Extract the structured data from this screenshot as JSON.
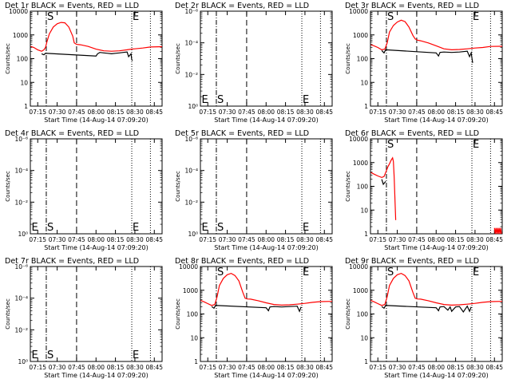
{
  "layout_hint": "3x3 grid of detector count-rate panels",
  "common": {
    "x_tick_labels": [
      "07:15",
      "07:30",
      "07:45",
      "08:00",
      "08:15",
      "08:30",
      "08:45"
    ],
    "xlabel": "Start Time (14-Aug-14 07:09:20)",
    "ylabel": "Counts/sec",
    "colors": {
      "events": "#000000",
      "lld": "#ff0000",
      "axes": "#000000"
    }
  },
  "chart_data": [
    {
      "id": "det1",
      "type": "line",
      "title": "Det 1r BLACK = Events, RED = LLD",
      "xlabel": "Start Time (14-Aug-14 07:09:20)",
      "ylabel": "Counts/sec",
      "y_scale": "log",
      "y_range": [
        1,
        15000
      ],
      "x_range": [
        7.155,
        8.85
      ],
      "y_tick_labels": [
        "1",
        "10",
        "100",
        "1000",
        "10000"
      ],
      "markers": {
        "S": 7.36,
        "E": 8.46
      },
      "vlines": {
        "dashdot": [
          7.36
        ],
        "dashed": [
          7.75
        ],
        "dotted": [
          8.46,
          8.7
        ]
      },
      "series": [
        {
          "name": "LLD",
          "color": "#ff0000",
          "x": [
            7.16,
            7.2,
            7.25,
            7.3,
            7.33,
            7.35,
            7.37,
            7.4,
            7.45,
            7.5,
            7.55,
            7.6,
            7.65,
            7.7,
            7.72,
            7.75,
            7.8,
            7.9,
            8.0,
            8.1,
            8.2,
            8.3,
            8.4,
            8.45,
            8.5,
            8.6,
            8.7,
            8.85
          ],
          "y": [
            420,
            380,
            300,
            260,
            300,
            380,
            700,
            1500,
            3000,
            4200,
            4800,
            4600,
            3000,
            1200,
            600,
            520,
            500,
            420,
            320,
            270,
            260,
            270,
            300,
            320,
            330,
            360,
            400,
            410
          ]
        },
        {
          "name": "Events",
          "color": "#000000",
          "x": [
            7.3,
            7.33,
            7.35,
            8.0,
            8.02,
            8.05,
            8.1,
            8.15,
            8.2,
            8.25,
            8.3,
            8.35,
            8.4,
            8.42,
            8.45,
            8.46,
            8.47
          ],
          "y": [
            200,
            180,
            210,
            160,
            200,
            230,
            220,
            210,
            200,
            210,
            220,
            230,
            240,
            150,
            200,
            110,
            100
          ]
        }
      ]
    },
    {
      "id": "det2",
      "type": "line",
      "title": "Det 2r BLACK = Events, RED = LLD",
      "xlabel": "Start Time (14-Aug-14 07:09:20)",
      "ylabel": "Counts/sec",
      "y_scale": "log",
      "y_range": [
        0.6,
        1.6e-06
      ],
      "x_range": [
        7.155,
        8.85
      ],
      "y_tick_labels": [
        "10⁰",
        "10⁻²",
        "10⁻⁴",
        "10⁻⁶"
      ],
      "markers": {
        "E": 7.16,
        "S": 7.36,
        "E2": 8.46
      },
      "vlines": {
        "dashdot": [
          7.36
        ],
        "dashed": [
          7.75
        ],
        "dotted": [
          8.46,
          8.7
        ]
      },
      "series": []
    },
    {
      "id": "det3",
      "type": "line",
      "title": "Det 3r BLACK = Events, RED = LLD",
      "xlabel": "Start Time (14-Aug-14 07:09:20)",
      "ylabel": "Counts/sec",
      "y_scale": "log",
      "y_range": [
        1,
        15000
      ],
      "x_range": [
        7.155,
        8.85
      ],
      "y_tick_labels": [
        "1",
        "10",
        "100",
        "1000",
        "10000"
      ],
      "markers": {
        "S": 7.36,
        "E": 8.46
      },
      "vlines": {
        "dashdot": [
          7.36
        ],
        "dashed": [
          7.75
        ],
        "dotted": [
          8.46,
          8.7
        ]
      },
      "series": [
        {
          "name": "LLD",
          "color": "#ff0000",
          "x": [
            7.16,
            7.2,
            7.25,
            7.3,
            7.34,
            7.37,
            7.4,
            7.45,
            7.5,
            7.55,
            7.6,
            7.65,
            7.7,
            7.73,
            7.76,
            7.8,
            7.9,
            8.0,
            8.1,
            8.2,
            8.3,
            8.4,
            8.5,
            8.6,
            8.7,
            8.85
          ],
          "y": [
            500,
            450,
            380,
            300,
            320,
            600,
            1800,
            3500,
            5000,
            6000,
            5200,
            3000,
            1300,
            900,
            800,
            750,
            600,
            450,
            330,
            300,
            310,
            330,
            360,
            380,
            420,
            430
          ]
        },
        {
          "name": "Events",
          "color": "#000000",
          "x": [
            7.3,
            7.33,
            7.35,
            8.0,
            8.03,
            8.05,
            8.1,
            8.2,
            8.3,
            8.4,
            8.43,
            8.45,
            8.47
          ],
          "y": [
            280,
            220,
            300,
            220,
            160,
            230,
            240,
            230,
            240,
            260,
            150,
            220,
            80
          ]
        }
      ]
    },
    {
      "id": "det4",
      "type": "line",
      "title": "Det 4r BLACK = Events, RED = LLD",
      "xlabel": "Start Time (14-Aug-14 07:09:20)",
      "ylabel": "Counts/sec",
      "y_scale": "log",
      "y_range": [
        0.6,
        1.6e-06
      ],
      "x_range": [
        7.155,
        8.85
      ],
      "y_tick_labels": [
        "10⁰",
        "10⁻²",
        "10⁻⁴",
        "10⁻⁶"
      ],
      "markers": {
        "E": 7.16,
        "S": 7.36,
        "E2": 8.46
      },
      "vlines": {
        "dashdot": [
          7.36
        ],
        "dashed": [
          7.75
        ],
        "dotted": [
          8.46,
          8.7
        ]
      },
      "series": []
    },
    {
      "id": "det5",
      "type": "line",
      "title": "Det 5r BLACK = Events, RED = LLD",
      "xlabel": "Start Time (14-Aug-14 07:09:20)",
      "ylabel": "Counts/sec",
      "y_scale": "log",
      "y_range": [
        0.6,
        1.6e-06
      ],
      "x_range": [
        7.155,
        8.85
      ],
      "y_tick_labels": [
        "10⁰",
        "10⁻²",
        "10⁻⁴",
        "10⁻⁶"
      ],
      "markers": {
        "E": 7.16,
        "S": 7.36,
        "E2": 8.46
      },
      "vlines": {
        "dashdot": [
          7.36
        ],
        "dashed": [
          7.75
        ],
        "dotted": [
          8.46,
          8.7
        ]
      },
      "series": []
    },
    {
      "id": "det6",
      "type": "line",
      "title": "Det 6r BLACK = Events, RED = LLD",
      "xlabel": "Start Time (14-Aug-14 07:09:20)",
      "ylabel": "Counts/sec",
      "y_scale": "log",
      "y_range": [
        1,
        15000
      ],
      "x_range": [
        7.155,
        8.85
      ],
      "y_tick_labels": [
        "1",
        "10",
        "100",
        "1000",
        "10000"
      ],
      "markers": {
        "S": 7.36,
        "E": 8.46
      },
      "vlines": {
        "dashdot": [
          7.36
        ],
        "dashed": [
          7.75
        ],
        "dotted": [
          8.46,
          8.7
        ]
      },
      "series": [
        {
          "name": "LLD",
          "color": "#ff0000",
          "x": [
            7.16,
            7.2,
            7.25,
            7.3,
            7.33,
            7.36,
            7.38,
            7.4,
            7.42,
            7.44,
            7.45,
            7.46,
            7.47,
            7.48
          ],
          "y": [
            500,
            420,
            350,
            300,
            330,
            600,
            900,
            1200,
            1700,
            2200,
            1500,
            300,
            30,
            4
          ]
        },
        {
          "name": "Events",
          "color": "#000000",
          "x": [
            7.3,
            7.32,
            7.35
          ],
          "y": [
            250,
            150,
            200
          ]
        },
        {
          "name": "LLD-tail",
          "color": "#ff0000",
          "x": [
            8.75,
            8.76,
            8.77,
            8.78,
            8.79,
            8.8,
            8.81,
            8.82,
            8.83,
            8.84
          ],
          "y": [
            1.8,
            1,
            1.8,
            1,
            1.8,
            1,
            1.8,
            1,
            1.8,
            1
          ]
        }
      ]
    },
    {
      "id": "det7",
      "type": "line",
      "title": "Det 7r BLACK = Events, RED = LLD",
      "xlabel": "Start Time (14-Aug-14 07:09:20)",
      "ylabel": "Counts/sec",
      "y_scale": "log",
      "y_range": [
        0.6,
        1.6e-06
      ],
      "x_range": [
        7.155,
        8.85
      ],
      "y_tick_labels": [
        "10⁰",
        "10⁻²",
        "10⁻⁴",
        "10⁻⁶"
      ],
      "markers": {
        "E": 7.16,
        "S": 7.36,
        "E2": 8.46
      },
      "vlines": {
        "dashdot": [
          7.36
        ],
        "dashed": [
          7.75
        ],
        "dotted": [
          8.46,
          8.7
        ]
      },
      "series": []
    },
    {
      "id": "det8",
      "type": "line",
      "title": "Det 8r BLACK = Events, RED = LLD",
      "xlabel": "Start Time (14-Aug-14 07:09:20)",
      "ylabel": "Counts/sec",
      "y_scale": "log",
      "y_range": [
        1,
        15000
      ],
      "x_range": [
        7.155,
        8.85
      ],
      "y_tick_labels": [
        "1",
        "10",
        "100",
        "1000",
        "10000"
      ],
      "markers": {
        "S": 7.36,
        "E": 8.46
      },
      "vlines": {
        "dashdot": [
          7.36
        ],
        "dashed": [
          7.75
        ],
        "dotted": [
          8.46,
          8.7
        ]
      },
      "series": [
        {
          "name": "LLD",
          "color": "#ff0000",
          "x": [
            7.16,
            7.2,
            7.25,
            7.3,
            7.34,
            7.37,
            7.4,
            7.45,
            7.5,
            7.55,
            7.6,
            7.65,
            7.7,
            7.73,
            7.76,
            7.8,
            7.9,
            8.0,
            8.1,
            8.2,
            8.3,
            8.4,
            8.5,
            8.6,
            8.7,
            8.85
          ],
          "y": [
            480,
            420,
            350,
            290,
            320,
            700,
            2200,
            4500,
            6500,
            7500,
            6000,
            3500,
            1100,
            600,
            560,
            550,
            470,
            380,
            320,
            300,
            310,
            330,
            360,
            400,
            430,
            440
          ]
        },
        {
          "name": "Events",
          "color": "#000000",
          "x": [
            7.3,
            7.33,
            7.35,
            8.0,
            8.03,
            8.05,
            8.1,
            8.2,
            8.3,
            8.4,
            8.43,
            8.45
          ],
          "y": [
            260,
            220,
            290,
            230,
            170,
            250,
            260,
            250,
            260,
            270,
            160,
            250
          ]
        }
      ]
    },
    {
      "id": "det9",
      "type": "line",
      "title": "Det 9r BLACK = Events, RED = LLD",
      "xlabel": "Start Time (14-Aug-14 07:09:20)",
      "ylabel": "Counts/sec",
      "y_scale": "log",
      "y_range": [
        1,
        15000
      ],
      "x_range": [
        7.155,
        8.85
      ],
      "y_tick_labels": [
        "1",
        "10",
        "100",
        "1000",
        "10000"
      ],
      "markers": {
        "S": 7.36,
        "E": 8.46
      },
      "vlines": {
        "dashdot": [
          7.36
        ],
        "dashed": [
          7.75
        ],
        "dotted": [
          8.46,
          8.7
        ]
      },
      "series": [
        {
          "name": "LLD",
          "color": "#ff0000",
          "x": [
            7.16,
            7.2,
            7.25,
            7.3,
            7.34,
            7.37,
            7.4,
            7.45,
            7.5,
            7.55,
            7.6,
            7.65,
            7.7,
            7.73,
            7.76,
            7.8,
            7.9,
            8.0,
            8.1,
            8.2,
            8.3,
            8.4,
            8.5,
            8.6,
            8.7,
            8.85
          ],
          "y": [
            480,
            420,
            350,
            290,
            320,
            700,
            2200,
            4500,
            6500,
            7500,
            6000,
            3500,
            1100,
            600,
            560,
            550,
            470,
            380,
            320,
            300,
            310,
            330,
            360,
            400,
            430,
            440
          ]
        },
        {
          "name": "Events",
          "color": "#000000",
          "x": [
            7.3,
            7.33,
            7.35,
            8.0,
            8.03,
            8.05,
            8.1,
            8.15,
            8.18,
            8.2,
            8.25,
            8.3,
            8.35,
            8.4,
            8.43,
            8.45
          ],
          "y": [
            260,
            220,
            290,
            230,
            170,
            250,
            260,
            180,
            250,
            160,
            250,
            260,
            150,
            270,
            160,
            250
          ]
        }
      ]
    }
  ]
}
